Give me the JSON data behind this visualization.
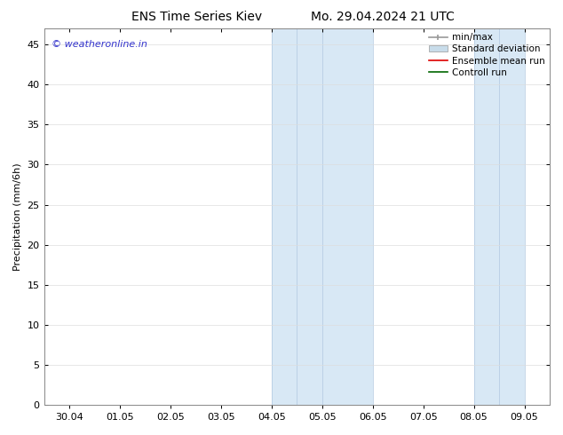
{
  "title_left": "ENS Time Series Kiev",
  "title_right": "Mo. 29.04.2024 21 UTC",
  "ylabel": "Precipitation (mm/6h)",
  "ylim": [
    0,
    47
  ],
  "yticks": [
    0,
    5,
    10,
    15,
    20,
    25,
    30,
    35,
    40,
    45
  ],
  "xtick_labels": [
    "30.04",
    "01.05",
    "02.05",
    "03.05",
    "04.05",
    "05.05",
    "06.05",
    "07.05",
    "08.05",
    "09.05"
  ],
  "watermark": "© weatheronline.in",
  "watermark_color": "#3333cc",
  "background_color": "#ffffff",
  "plot_bg_color": "#ffffff",
  "shaded_bands": [
    {
      "xstart": 4.0,
      "xend": 4.5
    },
    {
      "xstart": 4.5,
      "xend": 5.0
    },
    {
      "xstart": 5.0,
      "xend": 6.0
    },
    {
      "xstart": 8.0,
      "xend": 8.5
    },
    {
      "xstart": 8.5,
      "xend": 9.0
    }
  ],
  "shade_color": "#d8e8f5",
  "band_line_color": "#b0c8e0",
  "legend_entries": [
    {
      "label": "min/max"
    },
    {
      "label": "Standard deviation"
    },
    {
      "label": "Ensemble mean run"
    },
    {
      "label": "Controll run"
    }
  ],
  "minmax_color": "#999999",
  "stddev_color": "#c8dcea",
  "ensemble_color": "#dd0000",
  "control_color": "#006600",
  "title_fontsize": 10,
  "axis_label_fontsize": 8,
  "tick_fontsize": 8,
  "legend_fontsize": 7.5
}
